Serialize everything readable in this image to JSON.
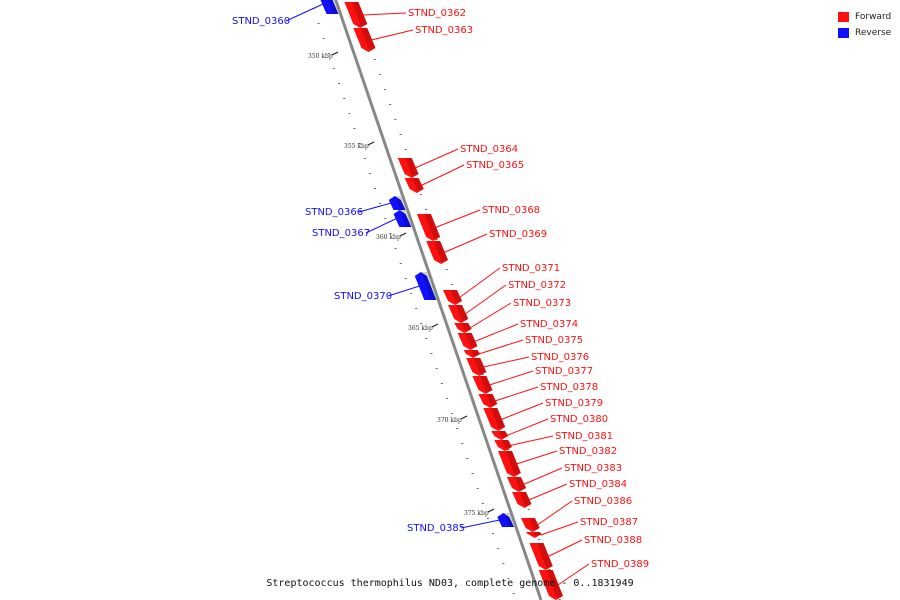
{
  "colors": {
    "forward": "#ff1010",
    "reverse": "#1010ff",
    "backbone": "#888888"
  },
  "legend": {
    "forward_label": "Forward",
    "reverse_label": "Reverse"
  },
  "caption": "Streptococcus thermophilus ND03, complete genome - 0..1831949",
  "scale_labels": [
    "350 kbp",
    "355 kbp",
    "360 kbp",
    "365 kbp",
    "370 kbp",
    "375 kbp"
  ],
  "genes": [
    {
      "name": "STND_0360",
      "strand": "reverse"
    },
    {
      "name": "STND_0362",
      "strand": "forward"
    },
    {
      "name": "STND_0363",
      "strand": "forward"
    },
    {
      "name": "STND_0364",
      "strand": "forward"
    },
    {
      "name": "STND_0365",
      "strand": "forward"
    },
    {
      "name": "STND_0366",
      "strand": "reverse"
    },
    {
      "name": "STND_0367",
      "strand": "reverse"
    },
    {
      "name": "STND_0368",
      "strand": "forward"
    },
    {
      "name": "STND_0369",
      "strand": "forward"
    },
    {
      "name": "STND_0370",
      "strand": "reverse"
    },
    {
      "name": "STND_0371",
      "strand": "forward"
    },
    {
      "name": "STND_0372",
      "strand": "forward"
    },
    {
      "name": "STND_0373",
      "strand": "forward"
    },
    {
      "name": "STND_0374",
      "strand": "forward"
    },
    {
      "name": "STND_0375",
      "strand": "forward"
    },
    {
      "name": "STND_0376",
      "strand": "forward"
    },
    {
      "name": "STND_0377",
      "strand": "forward"
    },
    {
      "name": "STND_0378",
      "strand": "forward"
    },
    {
      "name": "STND_0379",
      "strand": "forward"
    },
    {
      "name": "STND_0380",
      "strand": "forward"
    },
    {
      "name": "STND_0381",
      "strand": "forward"
    },
    {
      "name": "STND_0382",
      "strand": "forward"
    },
    {
      "name": "STND_0383",
      "strand": "forward"
    },
    {
      "name": "STND_0384",
      "strand": "forward"
    },
    {
      "name": "STND_0385",
      "strand": "reverse"
    },
    {
      "name": "STND_0386",
      "strand": "forward"
    },
    {
      "name": "STND_0387",
      "strand": "forward"
    },
    {
      "name": "STND_0388",
      "strand": "forward"
    },
    {
      "name": "STND_0389",
      "strand": "forward"
    }
  ]
}
